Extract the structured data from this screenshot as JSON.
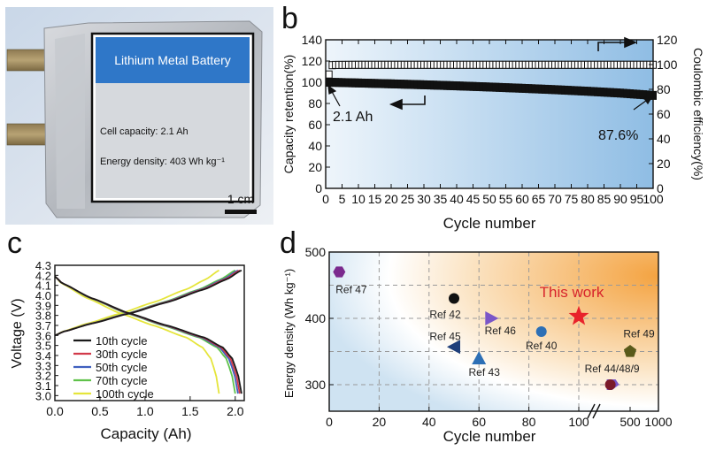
{
  "panels": {
    "a": {
      "letter": "a",
      "label_title": "Lithium Metal Battery",
      "label_capacity": "Cell capacity: 2.1 Ah",
      "label_density": "Energy density: 403 Wh kg⁻¹",
      "scale_bar": "1 cm"
    },
    "b": {
      "letter": "b"
    },
    "c": {
      "letter": "c"
    },
    "d": {
      "letter": "d"
    }
  },
  "colors": {
    "blue_label": "#2f77c8",
    "star": "#e8232b",
    "this_work_text": "#d7242c"
  },
  "chart_data": [
    {
      "id": "b",
      "type": "line",
      "xlabel": "Cycle number",
      "ylabel": "Capacity retention(%)",
      "y2label": "Coulombic efficiency(%)",
      "xlim": [
        0,
        100
      ],
      "ylim": [
        0,
        140
      ],
      "y2lim": [
        0,
        120
      ],
      "xticks": [
        0,
        5,
        10,
        15,
        20,
        25,
        30,
        35,
        40,
        45,
        50,
        55,
        60,
        65,
        70,
        75,
        80,
        85,
        90,
        95,
        100
      ],
      "yticks": [
        0,
        20,
        40,
        60,
        80,
        100,
        120,
        140
      ],
      "y2ticks": [
        0,
        20,
        40,
        60,
        80,
        100,
        120
      ],
      "series": [
        {
          "name": "Capacity retention",
          "axis": "left",
          "marker": "filled-square",
          "x": [
            1,
            10,
            20,
            30,
            40,
            50,
            60,
            70,
            80,
            90,
            100
          ],
          "values": [
            100,
            99.3,
            98.5,
            97.6,
            96.6,
            95.5,
            94.3,
            93.0,
            91.5,
            89.8,
            87.6
          ]
        },
        {
          "name": "Coulombic efficiency",
          "axis": "right",
          "marker": "open-square",
          "x": [
            1,
            2,
            3,
            10,
            20,
            30,
            40,
            50,
            60,
            70,
            80,
            90,
            100
          ],
          "values": [
            92,
            99.5,
            99.7,
            99.8,
            99.8,
            99.8,
            99.8,
            99.8,
            99.8,
            99.8,
            99.8,
            99.8,
            99.8
          ]
        }
      ],
      "annotations": {
        "start": "2.1 Ah",
        "end": "87.6%"
      }
    },
    {
      "id": "c",
      "type": "line",
      "xlabel": "Capacity (Ah)",
      "ylabel": "Voltage (V)",
      "xlim": [
        0,
        2.1
      ],
      "ylim": [
        2.95,
        4.3
      ],
      "xticks": [
        0.0,
        0.5,
        1.0,
        1.5,
        2.0
      ],
      "xtick_labels": [
        "0.0",
        "0.5",
        "1.0",
        "1.5",
        "2.0"
      ],
      "yticks": [
        3.0,
        3.1,
        3.2,
        3.3,
        3.4,
        3.5,
        3.6,
        3.7,
        3.8,
        3.9,
        4.0,
        4.1,
        4.2,
        4.3
      ],
      "ytick_labels": [
        "3.0",
        "3.1",
        "3.2",
        "3.3",
        "3.4",
        "3.5",
        "3.6",
        "3.7",
        "3.8",
        "3.9",
        "4.0",
        "4.1",
        "4.2",
        "4.3"
      ],
      "legend": [
        "10th cycle",
        "30th cycle",
        "50th cycle",
        "70th cycle",
        "100th cycle"
      ],
      "series": [
        {
          "name": "10th cycle",
          "color": "#1a1a1a",
          "cap": 2.07
        },
        {
          "name": "30th cycle",
          "color": "#d23a4a",
          "cap": 2.05
        },
        {
          "name": "50th cycle",
          "color": "#3f5fbf",
          "cap": 2.03
        },
        {
          "name": "70th cycle",
          "color": "#5fc24a",
          "cap": 2.0
        },
        {
          "name": "100th cycle",
          "color": "#e5e53b",
          "cap": 1.82
        }
      ],
      "charge_curve": {
        "q_frac": [
          0,
          0.05,
          0.2,
          0.4,
          0.6,
          0.8,
          0.92,
          1.0
        ],
        "v": [
          3.6,
          3.64,
          3.72,
          3.82,
          3.93,
          4.06,
          4.16,
          4.25
        ]
      },
      "discharge_curve": {
        "q_frac": [
          0,
          0.04,
          0.2,
          0.4,
          0.6,
          0.8,
          0.9,
          0.95,
          0.98,
          1.0
        ],
        "v": [
          4.19,
          4.12,
          3.97,
          3.82,
          3.7,
          3.58,
          3.48,
          3.37,
          3.22,
          3.02
        ]
      }
    },
    {
      "id": "d",
      "type": "scatter",
      "xlabel": "Cycle number",
      "ylabel": "Energy density (Wh kg⁻¹)",
      "xticks": [
        0,
        20,
        40,
        60,
        80,
        100,
        500,
        1000
      ],
      "xtick_labels": [
        "0",
        "20",
        "40",
        "60",
        "80",
        "100",
        "500",
        "1000"
      ],
      "yticks": [
        300,
        400,
        500
      ],
      "ylim": [
        260,
        500
      ],
      "axis_break_after": 100,
      "points": [
        {
          "label": "Ref 47",
          "cycles": 4,
          "energy": 470,
          "marker": "hexagon",
          "color": "#7b2a8e"
        },
        {
          "label": "Ref 42",
          "cycles": 50,
          "energy": 430,
          "marker": "circle",
          "color": "#111111"
        },
        {
          "label": "Ref 46",
          "cycles": 65,
          "energy": 400,
          "marker": "triangle-right",
          "color": "#7a56c8"
        },
        {
          "label": "Ref 45",
          "cycles": 50,
          "energy": 357,
          "marker": "triangle-left",
          "color": "#1f3f7a"
        },
        {
          "label": "Ref 43",
          "cycles": 60,
          "energy": 340,
          "marker": "triangle-up",
          "color": "#2d6fb5"
        },
        {
          "label": "Ref 40",
          "cycles": 85,
          "energy": 380,
          "marker": "circle",
          "color": "#2d6fb5"
        },
        {
          "label": "This work",
          "cycles": 100,
          "energy": 403,
          "marker": "star",
          "color": "#e8232b"
        },
        {
          "label": "Ref 49",
          "cycles": 500,
          "energy": 350,
          "marker": "pentagon",
          "color": "#5a5a1a"
        },
        {
          "label": "Ref 44/48/9",
          "cycles": 300,
          "energy": 300,
          "marker": "diamond",
          "color": "#7a1a2a"
        }
      ]
    }
  ]
}
